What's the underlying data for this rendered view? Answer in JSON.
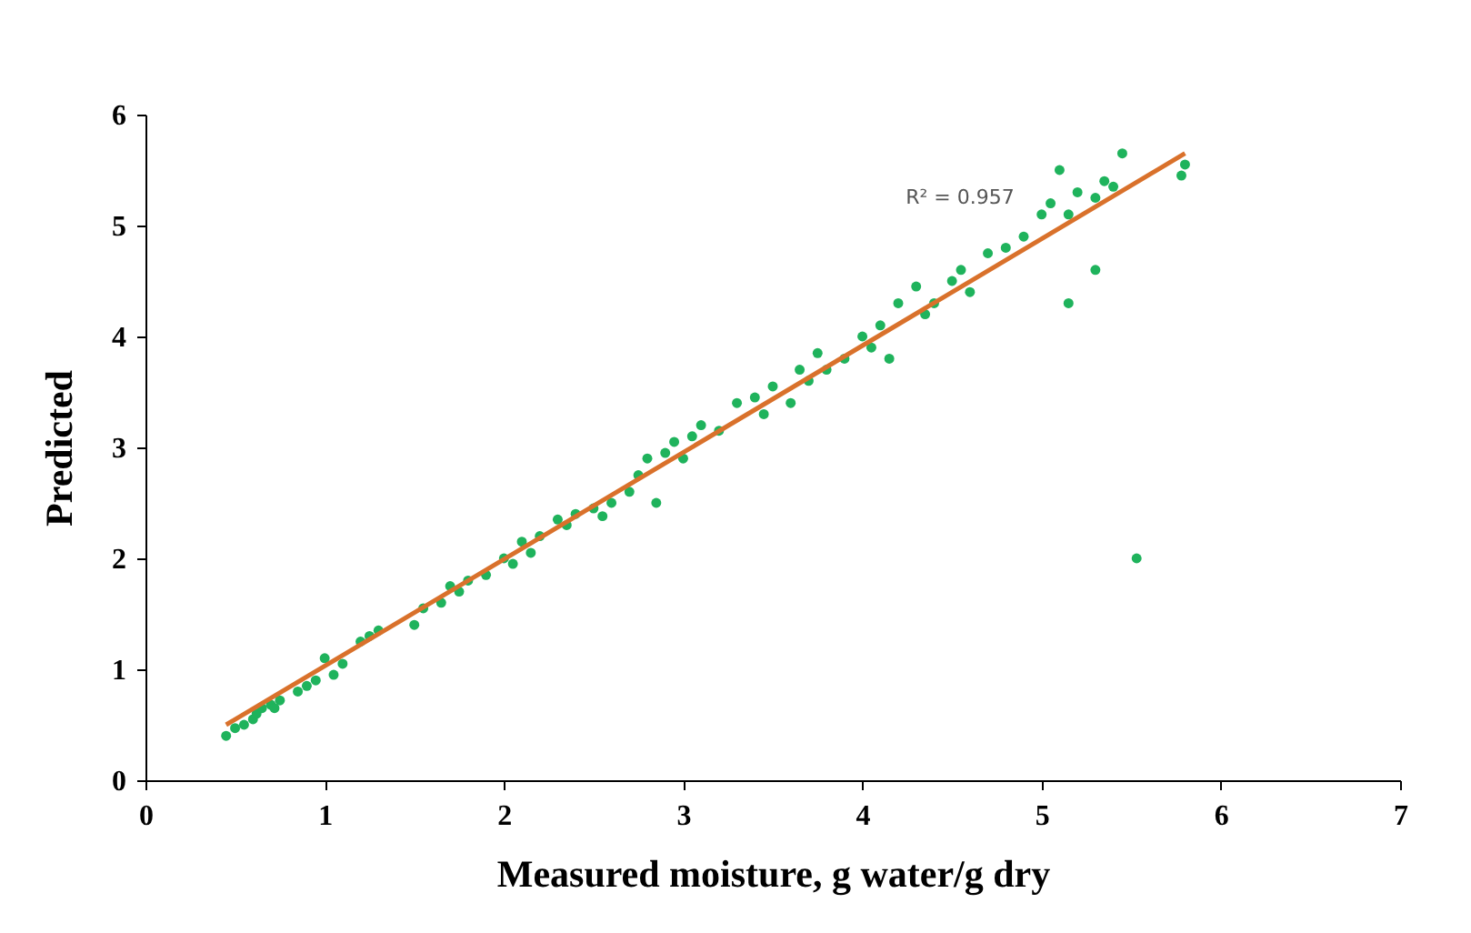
{
  "chart_data": {
    "type": "scatter",
    "xlabel": "Measured moisture, g water/g dry",
    "ylabel": "Predicted",
    "xlim": [
      0,
      7
    ],
    "xticks": [
      0,
      1,
      2,
      3,
      4,
      5,
      6,
      7
    ],
    "ylim": [
      0,
      6
    ],
    "yticks": [
      0,
      1,
      2,
      3,
      4,
      5,
      6
    ],
    "annotations": [
      "R² = 0.957"
    ],
    "series": [
      {
        "marker": "circle",
        "color": "#1fb35c",
        "x": [
          0.45,
          0.5,
          0.55,
          0.6,
          0.62,
          0.65,
          0.7,
          0.72,
          0.75,
          0.85,
          0.9,
          0.95,
          1.0,
          1.05,
          1.1,
          1.2,
          1.25,
          1.3,
          1.5,
          1.55,
          1.65,
          1.7,
          1.75,
          1.8,
          1.9,
          2.0,
          2.05,
          2.1,
          2.15,
          2.2,
          2.3,
          2.35,
          2.4,
          2.5,
          2.55,
          2.6,
          2.7,
          2.75,
          2.8,
          2.85,
          2.9,
          2.95,
          3.0,
          3.05,
          3.1,
          3.2,
          3.3,
          3.4,
          3.45,
          3.5,
          3.6,
          3.65,
          3.7,
          3.75,
          3.8,
          3.9,
          4.0,
          4.05,
          4.1,
          4.15,
          4.2,
          4.3,
          4.35,
          4.4,
          4.5,
          4.55,
          4.6,
          4.7,
          4.8,
          4.9,
          5.0,
          5.05,
          5.1,
          5.15,
          5.15,
          5.2,
          5.3,
          5.3,
          5.35,
          5.4,
          5.45,
          5.53,
          5.78,
          5.8
        ],
        "values": [
          0.4,
          0.47,
          0.5,
          0.55,
          0.6,
          0.65,
          0.68,
          0.65,
          0.72,
          0.8,
          0.85,
          0.9,
          1.1,
          0.95,
          1.05,
          1.25,
          1.3,
          1.35,
          1.4,
          1.55,
          1.6,
          1.75,
          1.7,
          1.8,
          1.85,
          2.0,
          1.95,
          2.15,
          2.05,
          2.2,
          2.35,
          2.3,
          2.4,
          2.45,
          2.38,
          2.5,
          2.6,
          2.75,
          2.9,
          2.5,
          2.95,
          3.05,
          2.9,
          3.1,
          3.2,
          3.15,
          3.4,
          3.45,
          3.3,
          3.55,
          3.4,
          3.7,
          3.6,
          3.85,
          3.7,
          3.8,
          4.0,
          3.9,
          4.1,
          3.8,
          4.3,
          4.45,
          4.2,
          4.3,
          4.5,
          4.6,
          4.4,
          4.75,
          4.8,
          4.9,
          5.1,
          5.2,
          5.5,
          5.1,
          4.3,
          5.3,
          5.25,
          4.6,
          5.4,
          5.35,
          5.65,
          2.0,
          5.45,
          5.55
        ]
      },
      {
        "type": "line",
        "color": "#d9712b",
        "line_style": "solid",
        "x": [
          0.45,
          5.8
        ],
        "values": [
          0.5,
          5.65
        ]
      }
    ]
  }
}
